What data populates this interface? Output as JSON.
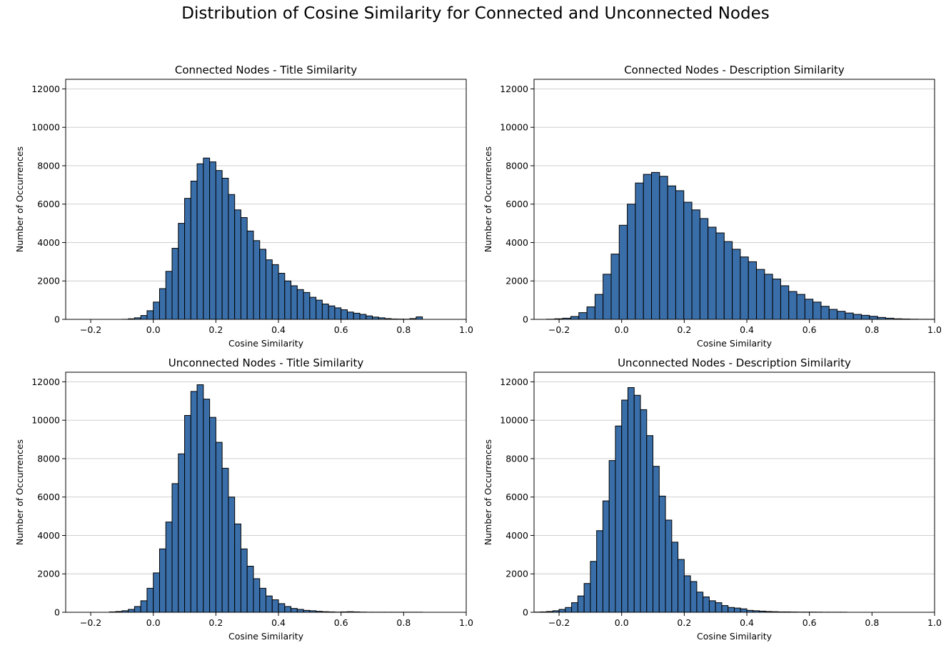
{
  "title": "Distribution of Cosine Similarity for Connected and Unconnected Nodes",
  "bar_color": "#3a6ea8",
  "edge_color": "#000000",
  "grid_color": "#c8c8c8",
  "chart_data": [
    {
      "type": "bar",
      "title": "Connected Nodes - Title Similarity",
      "xlabel": "Cosine Similarity",
      "ylabel": "Number of Occurrences",
      "xlim": [
        -0.28,
        1.0
      ],
      "ylim": [
        0,
        12500
      ],
      "xticks": [
        -0.2,
        0.0,
        0.2,
        0.4,
        0.6,
        0.8,
        1.0
      ],
      "xtick_labels": [
        "−0.2",
        "0.0",
        "0.2",
        "0.4",
        "0.6",
        "0.8",
        "1.0"
      ],
      "yticks": [
        0,
        2000,
        4000,
        6000,
        8000,
        10000,
        12000
      ],
      "ytick_labels": [
        "0",
        "2000",
        "4000",
        "6000",
        "8000",
        "10000",
        "12000"
      ],
      "grid": "y",
      "bin_start": -0.1,
      "bin_width": 0.02,
      "values": [
        5,
        30,
        80,
        200,
        450,
        900,
        1600,
        2500,
        3700,
        5000,
        6300,
        7200,
        8100,
        8400,
        8200,
        7750,
        7350,
        6500,
        5700,
        5300,
        4600,
        4100,
        3650,
        3100,
        2850,
        2400,
        2000,
        1750,
        1550,
        1400,
        1150,
        1000,
        800,
        700,
        600,
        500,
        380,
        320,
        260,
        180,
        120,
        80,
        40,
        20,
        15,
        10,
        40,
        130
      ]
    },
    {
      "type": "bar",
      "title": "Connected Nodes - Description Similarity",
      "xlabel": "Cosine Similarity",
      "ylabel": "Number of Occurrences",
      "xlim": [
        -0.28,
        1.0
      ],
      "ylim": [
        0,
        12500
      ],
      "xticks": [
        -0.2,
        0.0,
        0.2,
        0.4,
        0.6,
        0.8,
        1.0
      ],
      "xtick_labels": [
        "−0.2",
        "0.0",
        "0.2",
        "0.4",
        "0.6",
        "0.8",
        "1.0"
      ],
      "yticks": [
        0,
        2000,
        4000,
        6000,
        8000,
        10000,
        12000
      ],
      "ytick_labels": [
        "0",
        "2000",
        "4000",
        "6000",
        "8000",
        "10000",
        "12000"
      ],
      "grid": "y",
      "bin_start": -0.24,
      "bin_width": 0.0258,
      "values": [
        10,
        30,
        60,
        150,
        350,
        650,
        1300,
        2350,
        3400,
        4900,
        6000,
        7100,
        7550,
        7650,
        7450,
        6950,
        6700,
        6100,
        5700,
        5250,
        4800,
        4500,
        4050,
        3650,
        3250,
        3000,
        2600,
        2350,
        2100,
        1750,
        1450,
        1300,
        1050,
        900,
        680,
        520,
        420,
        330,
        260,
        210,
        160,
        100,
        60,
        30,
        20,
        10,
        5,
        5,
        0,
        0,
        0,
        100
      ]
    },
    {
      "type": "bar",
      "title": "Unconnected Nodes - Title Similarity",
      "xlabel": "Cosine Similarity",
      "ylabel": "Number of Occurrences",
      "xlim": [
        -0.28,
        1.0
      ],
      "ylim": [
        0,
        12500
      ],
      "xticks": [
        -0.2,
        0.0,
        0.2,
        0.4,
        0.6,
        0.8,
        1.0
      ],
      "xtick_labels": [
        "−0.2",
        "0.0",
        "0.2",
        "0.4",
        "0.6",
        "0.8",
        "1.0"
      ],
      "yticks": [
        0,
        2000,
        4000,
        6000,
        8000,
        10000,
        12000
      ],
      "ytick_labels": [
        "0",
        "2000",
        "4000",
        "6000",
        "8000",
        "10000",
        "12000"
      ],
      "grid": "y",
      "bin_start": -0.14,
      "bin_width": 0.02,
      "values": [
        20,
        40,
        80,
        150,
        300,
        600,
        1250,
        2050,
        3300,
        4700,
        6700,
        8250,
        10250,
        11500,
        11850,
        11100,
        10150,
        8850,
        7500,
        6000,
        4600,
        3300,
        2400,
        1750,
        1250,
        850,
        650,
        450,
        300,
        200,
        150,
        100,
        80,
        50,
        30,
        20,
        10,
        20,
        30,
        20,
        10,
        5,
        5,
        5,
        5,
        5,
        5,
        5,
        5,
        5
      ]
    },
    {
      "type": "bar",
      "title": "Unconnected Nodes - Description Similarity",
      "xlabel": "Cosine Similarity",
      "ylabel": "Number of Occurrences",
      "xlim": [
        -0.28,
        1.0
      ],
      "ylim": [
        0,
        12500
      ],
      "xticks": [
        -0.2,
        0.0,
        0.2,
        0.4,
        0.6,
        0.8,
        1.0
      ],
      "xtick_labels": [
        "−0.2",
        "0.0",
        "0.2",
        "0.4",
        "0.6",
        "0.8",
        "1.0"
      ],
      "yticks": [
        0,
        2000,
        4000,
        6000,
        8000,
        10000,
        12000
      ],
      "ytick_labels": [
        "0",
        "2000",
        "4000",
        "6000",
        "8000",
        "10000",
        "12000"
      ],
      "grid": "y",
      "bin_start": -0.28,
      "bin_width": 0.02,
      "values": [
        10,
        20,
        40,
        80,
        150,
        250,
        500,
        850,
        1500,
        2650,
        4250,
        5800,
        7900,
        9700,
        11050,
        11700,
        11300,
        10550,
        9200,
        7600,
        6050,
        4800,
        3650,
        2750,
        1900,
        1600,
        1050,
        800,
        600,
        500,
        350,
        250,
        220,
        180,
        100,
        80,
        60,
        40,
        30,
        20,
        20,
        15,
        10,
        10,
        10,
        8,
        5,
        5,
        5,
        5
      ]
    }
  ]
}
